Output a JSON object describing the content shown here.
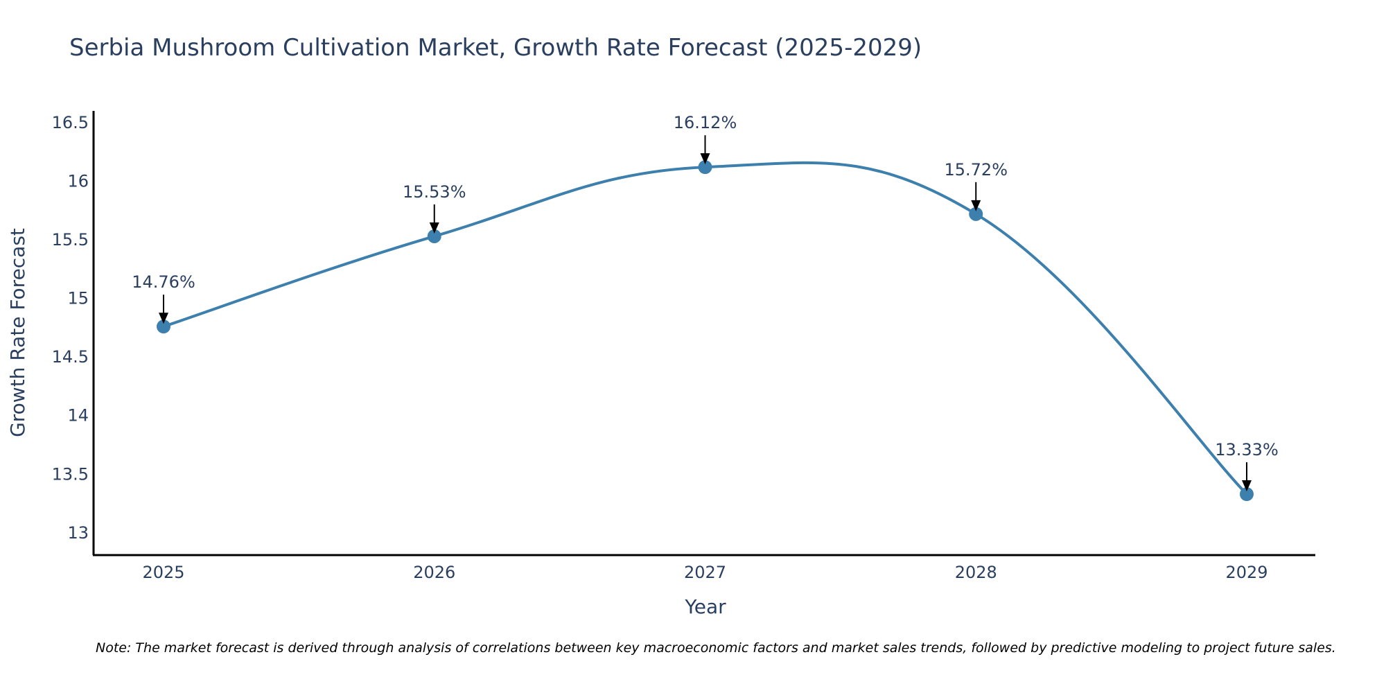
{
  "chart_data": {
    "type": "line",
    "title": "Serbia Mushroom Cultivation Market, Growth Rate Forecast (2025-2029)",
    "xlabel": "Year",
    "ylabel": "Growth Rate Forecast",
    "categories": [
      "2025",
      "2026",
      "2027",
      "2028",
      "2029"
    ],
    "series": [
      {
        "name": "Growth Rate Forecast",
        "values": [
          14.76,
          15.53,
          16.12,
          15.72,
          13.33
        ]
      }
    ],
    "data_labels": [
      "14.76%",
      "15.53%",
      "16.12%",
      "15.72%",
      "13.33%"
    ],
    "ylim": [
      12.81,
      16.6
    ],
    "yticks": [
      13,
      13.5,
      14,
      14.5,
      15,
      15.5,
      16,
      16.5
    ],
    "ytick_labels": [
      "13",
      "13.5",
      "14",
      "14.5",
      "15",
      "15.5",
      "16",
      "16.5"
    ],
    "grid": false,
    "line_color": "#3d7fad",
    "marker_color": "#3d7fad",
    "axis_color": "#000000",
    "note": "Note: The market forecast is derived through analysis of correlations between key macroeconomic factors and market sales trends, followed by predictive modeling to project future sales."
  }
}
